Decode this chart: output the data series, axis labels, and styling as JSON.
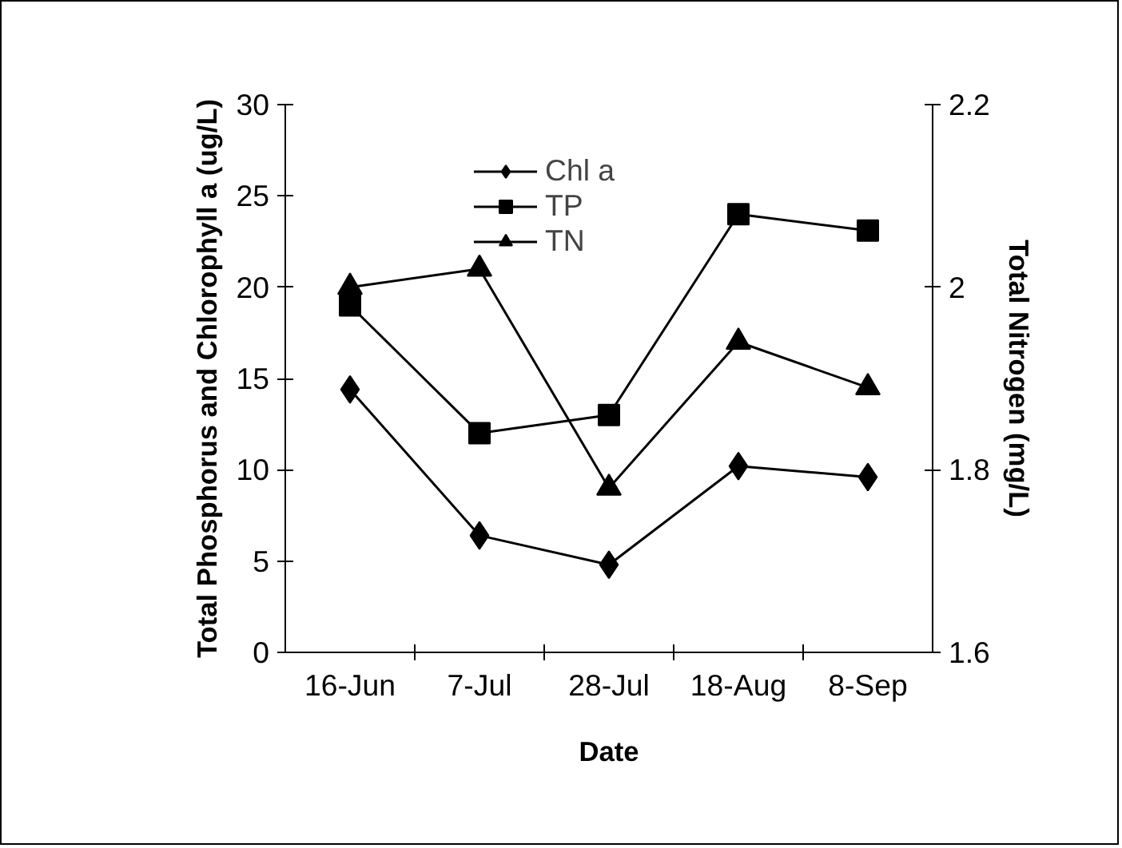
{
  "chart_data": {
    "type": "line",
    "xlabel": "Date",
    "ylabel": "Total Phosphorus and Chlorophyll a (ug/L)",
    "y2label": "Total Nitrogen (mg/L)",
    "categories": [
      "16-Jun",
      "7-Jul",
      "28-Jul",
      "18-Aug",
      "8-Sep"
    ],
    "series": [
      {
        "name": "Chl a",
        "color": "#000000",
        "marker": "diamond",
        "values": [
          14.4,
          6.4,
          4.8,
          10.2,
          9.6
        ]
      },
      {
        "name": "TP",
        "color": "#000000",
        "marker": "square",
        "values": [
          19.0,
          12.0,
          13.0,
          24.0,
          23.1
        ]
      },
      {
        "name": "TN",
        "color": "#000000",
        "marker": "triangle",
        "axis": "y2",
        "values": [
          2.0,
          2.02,
          1.78,
          1.94,
          1.89
        ]
      }
    ],
    "ylim": [
      0,
      30
    ],
    "yticks": [
      0,
      5,
      10,
      15,
      20,
      25,
      30
    ],
    "y2lim": [
      1.6,
      2.2
    ],
    "y2ticks": [
      1.6,
      1.8,
      2,
      2.2
    ],
    "grid": false,
    "legend": "top",
    "line_style": "solid"
  }
}
